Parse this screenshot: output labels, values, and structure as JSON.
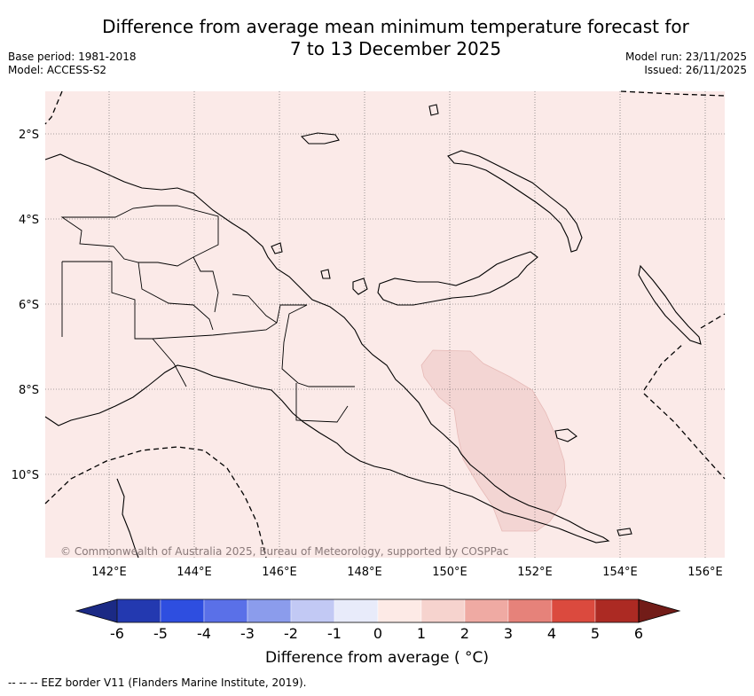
{
  "title": "Difference from average mean minimum temperature forecast for 7 to 13 December 2025",
  "title_line1": "Difference from average mean minimum temperature forecast for",
  "title_line2": "7 to 13 December 2025",
  "meta_left": {
    "base_period": "Base period: 1981-2018",
    "model": "Model: ACCESS-S2"
  },
  "meta_right": {
    "model_run": "Model run: 23/11/2025",
    "issued": "Issued: 26/11/2025"
  },
  "map": {
    "lat_labels": [
      "2°S",
      "4°S",
      "6°S",
      "8°S",
      "10°S"
    ],
    "lon_labels": [
      "142°E",
      "144°E",
      "146°E",
      "148°E",
      "150°E",
      "152°E",
      "154°E",
      "156°E"
    ],
    "copyright": "© Commonwealth of Australia 2025, Bureau of Meteorology, supported by COSPPac",
    "colors": {
      "background_anomaly": "#fbeae8",
      "patch_anomaly": "#f3d5d3",
      "border": "#000000"
    }
  },
  "colorbar": {
    "ticks": [
      "-6",
      "-5",
      "-4",
      "-3",
      "-2",
      "-1",
      "0",
      "1",
      "2",
      "3",
      "4",
      "5",
      "6"
    ],
    "colors": [
      "#1b2a85",
      "#2339b0",
      "#2e4ee0",
      "#5a70e8",
      "#8b9cec",
      "#c2c9f4",
      "#e8ebfa",
      "#fdeae6",
      "#f6d3ce",
      "#efaaa3",
      "#e6827a",
      "#db4a3e",
      "#ac2a23",
      "#721c18"
    ],
    "label": "Difference from average ( °C)"
  },
  "footnote": "-- -- -- EEZ border V11 (Flanders Marine Institute, 2019)."
}
